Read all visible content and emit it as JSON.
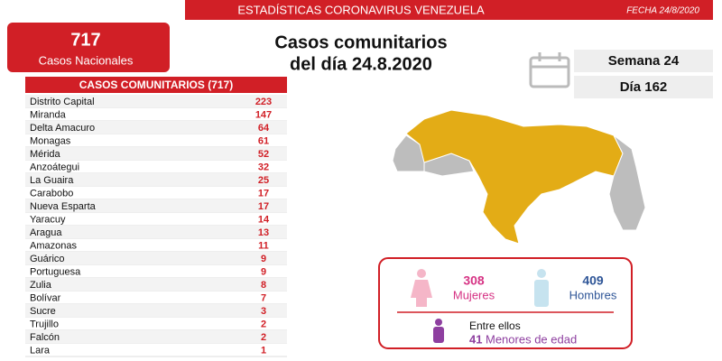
{
  "header": {
    "title": "ESTADÍSTICAS CORONAVIRUS VENEZUELA",
    "date": "FECHA 24/8/2020"
  },
  "total": {
    "value": 717,
    "label": "Casos Nacionales"
  },
  "headline": [
    "Casos comunitarios",
    "del día 24.8.2020"
  ],
  "week": "Semana 24",
  "day": "Día 162",
  "table": {
    "title": "CASOS COMUNITARIOS (717)",
    "rows": [
      [
        "Distrito Capital",
        223
      ],
      [
        "Miranda",
        147
      ],
      [
        "Delta Amacuro",
        64
      ],
      [
        "Monagas",
        61
      ],
      [
        "Mérida",
        52
      ],
      [
        "Anzoátegui",
        32
      ],
      [
        "La Guaira",
        25
      ],
      [
        "Carabobo",
        17
      ],
      [
        "Nueva Esparta",
        17
      ],
      [
        "Yaracuy",
        14
      ],
      [
        "Aragua",
        13
      ],
      [
        "Amazonas",
        11
      ],
      [
        "Guárico",
        9
      ],
      [
        "Portuguesa",
        9
      ],
      [
        "Zulia",
        8
      ],
      [
        "Bolívar",
        7
      ],
      [
        "Sucre",
        3
      ],
      [
        "Trujillo",
        2
      ],
      [
        "Falcón",
        2
      ],
      [
        "Lara",
        1
      ]
    ]
  },
  "gender": {
    "women": {
      "value": 308,
      "label": "Mujeres"
    },
    "men": {
      "value": 409,
      "label": "Hombres"
    }
  },
  "minors": {
    "intro": "Entre ellos",
    "value": 41,
    "label": "Menores de edad"
  }
}
